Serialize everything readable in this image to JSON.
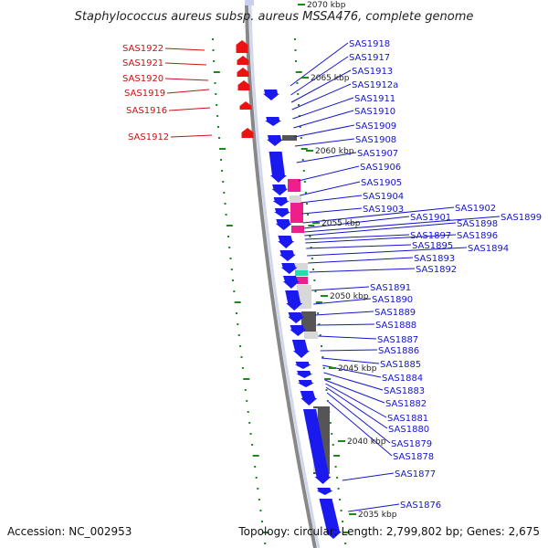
{
  "title": "Staphylococcus aureus subsp. aureus MSSA476, complete genome",
  "footer": {
    "accession": "Accession: NC_002953",
    "summary": "Topology: circular; Length: 2,799,802 bp; Genes: 2,675"
  },
  "colors": {
    "forward_gene": "#ee1111",
    "reverse_gene": "#1a1aee",
    "backbone": "#888888",
    "label_forward": "#cc1111",
    "label_reverse": "#1515cc",
    "gc_ticks": "#1a8a1a",
    "feature_pink": "#ee1f8c",
    "feature_light": "#d8d8d8",
    "feature_dark": "#555555",
    "feature_teal": "#22ddaa"
  },
  "kbp_ticks": [
    "2070 kbp",
    "2065 kbp",
    "2060 kbp",
    "2055 kbp",
    "2050 kbp",
    "2045 kbp",
    "2040 kbp",
    "2035 kbp"
  ],
  "left_genes": [
    "SAS1922",
    "SAS1921",
    "SAS1920",
    "SAS1919",
    "SAS1916",
    "SAS1912"
  ],
  "right_genes": [
    "SAS1918",
    "SAS1917",
    "SAS1913",
    "SAS1912a",
    "SAS1911",
    "SAS1910",
    "SAS1909",
    "SAS1908",
    "SAS1907",
    "SAS1906",
    "SAS1905",
    "SAS1904",
    "SAS1903",
    "SAS1902",
    "SAS1901",
    "SAS1899",
    "SAS1898",
    "SAS1897",
    "SAS1896",
    "SAS1895",
    "SAS1894",
    "SAS1893",
    "SAS1892",
    "SAS1891",
    "SAS1890",
    "SAS1889",
    "SAS1888",
    "SAS1887",
    "SAS1886",
    "SAS1885",
    "SAS1884",
    "SAS1883",
    "SAS1882",
    "SAS1881",
    "SAS1880",
    "SAS1879",
    "SAS1878",
    "SAS1877",
    "SAS1876"
  ]
}
